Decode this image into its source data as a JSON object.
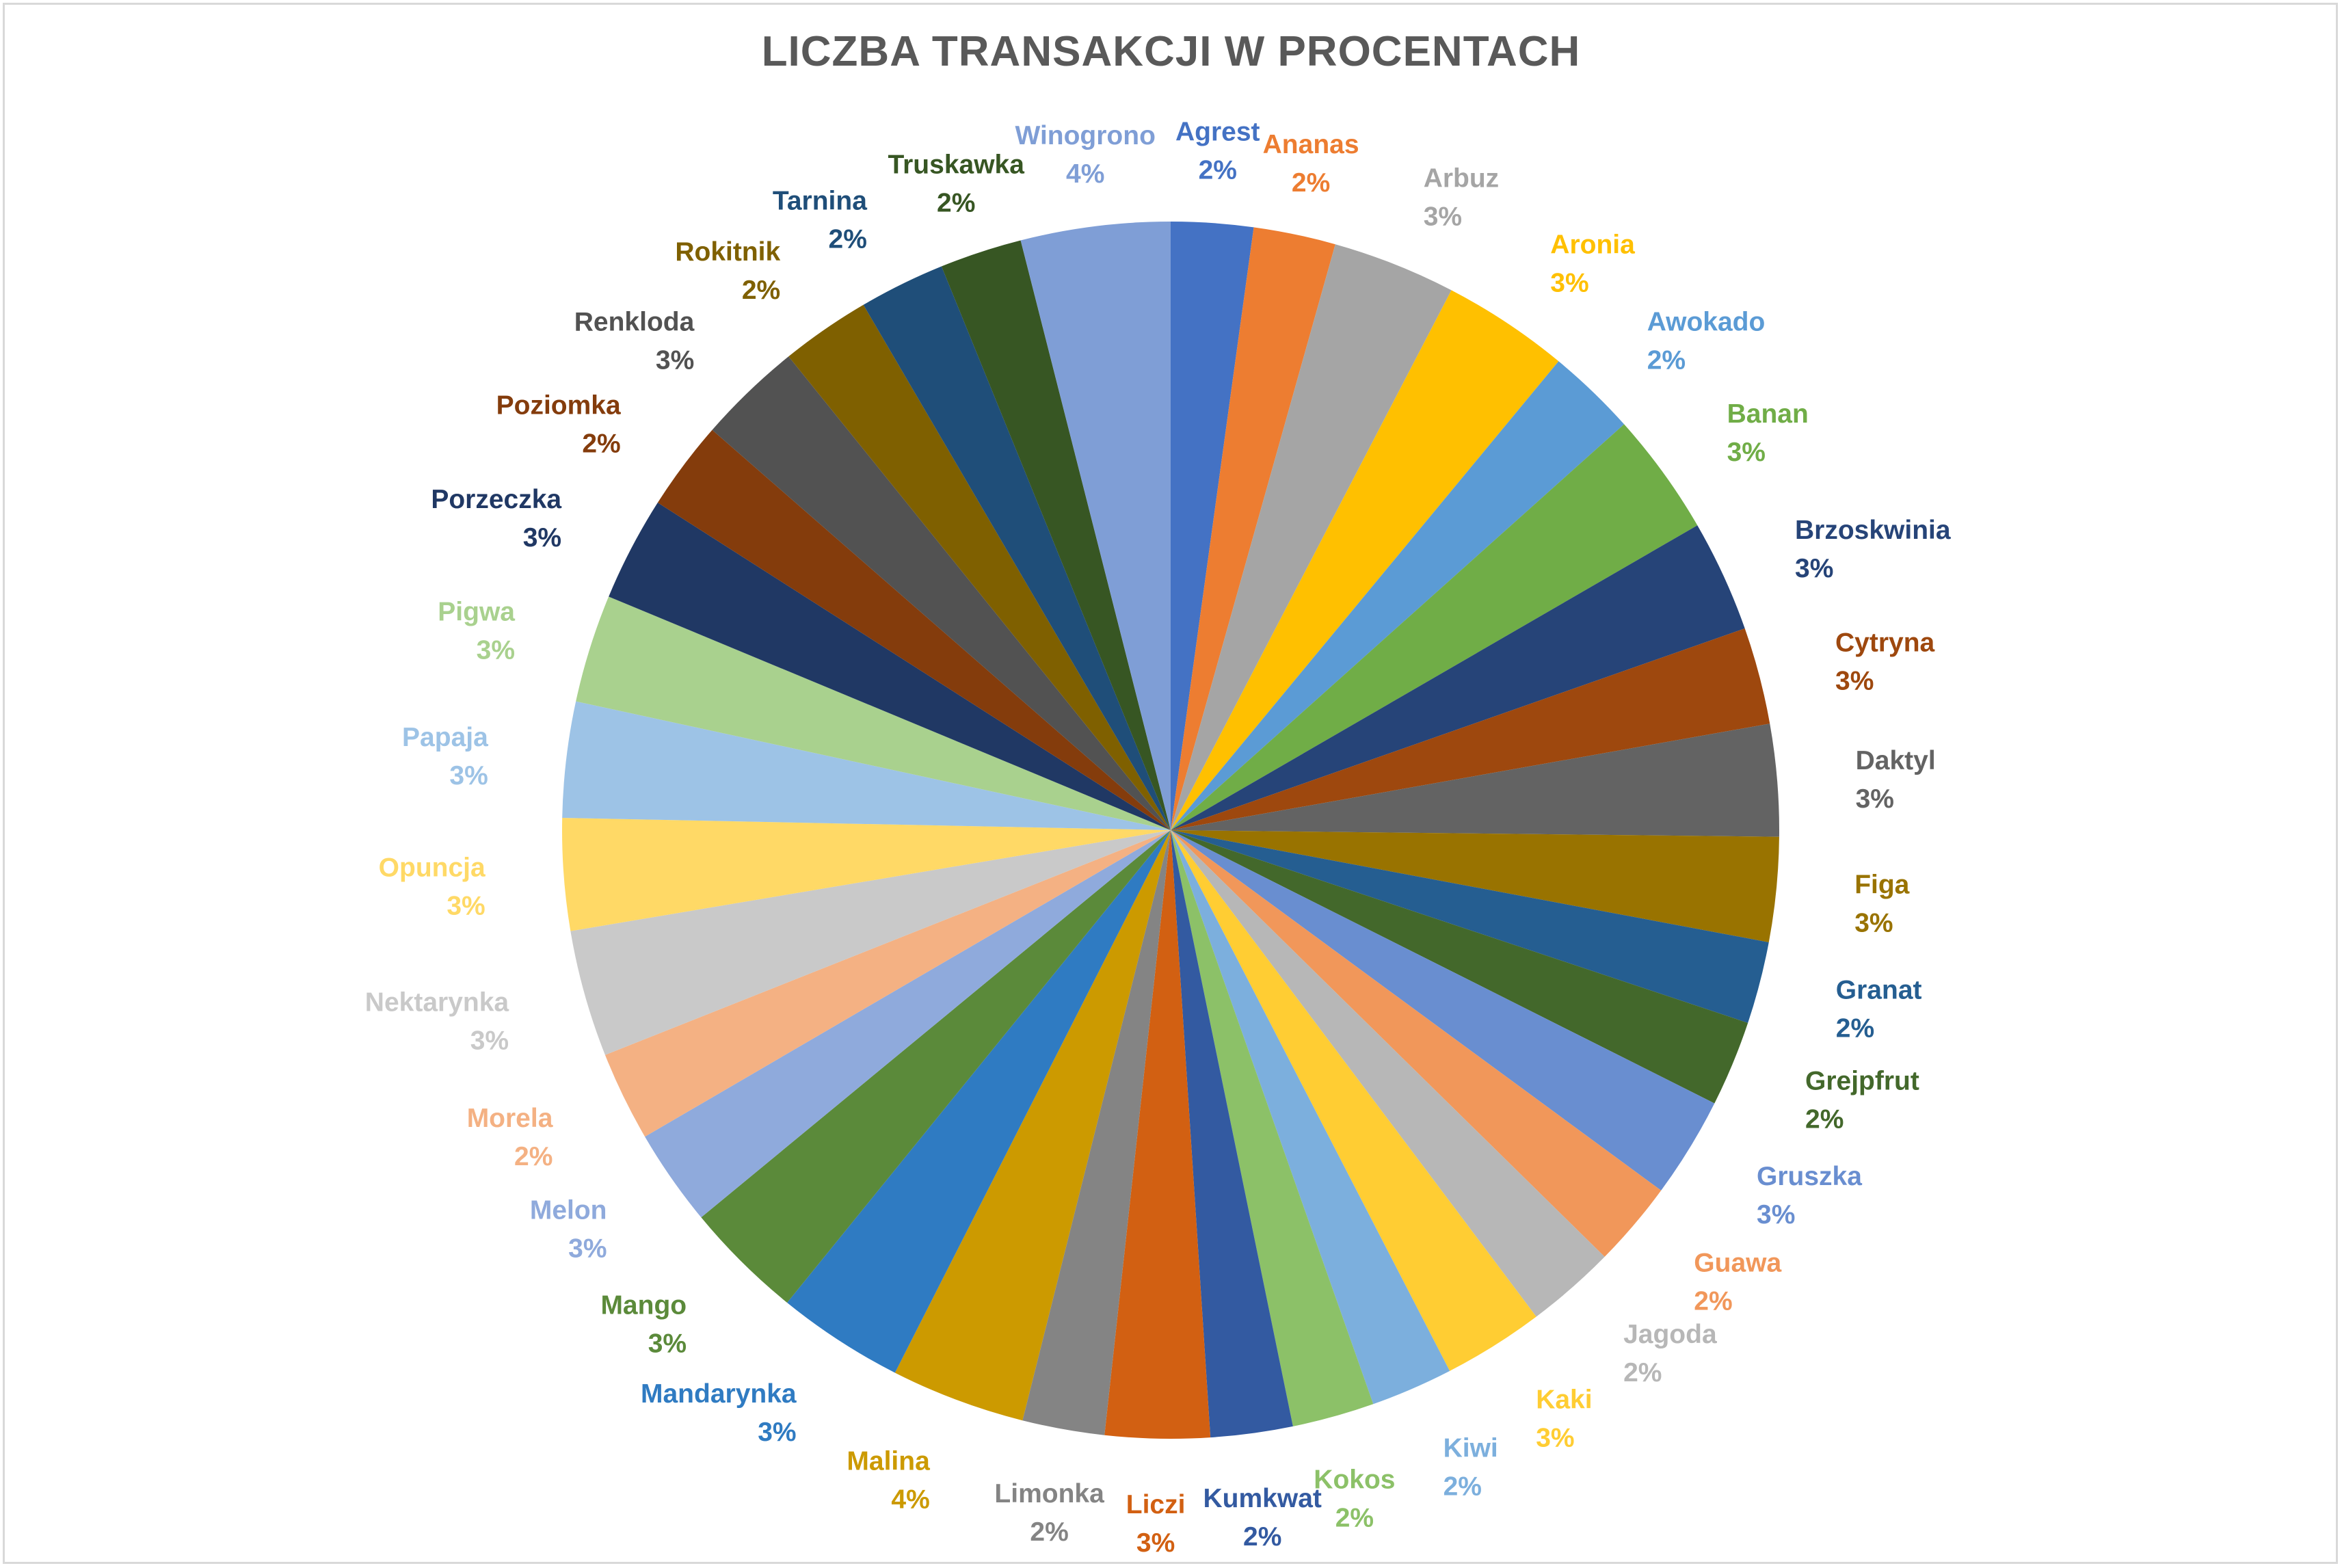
{
  "chart_data": {
    "type": "pie",
    "title": "LICZBA TRANSAKCJI W PROCENTACH",
    "slices": [
      {
        "name": "Agrest",
        "label": "2%",
        "value": 2.2,
        "color": "#4472C4"
      },
      {
        "name": "Ananas",
        "label": "2%",
        "value": 2.2,
        "color": "#ED7D31"
      },
      {
        "name": "Arbuz",
        "label": "3%",
        "value": 3.3,
        "color": "#A5A5A5"
      },
      {
        "name": "Aronia",
        "label": "3%",
        "value": 3.4,
        "color": "#FFC000"
      },
      {
        "name": "Awokado",
        "label": "2%",
        "value": 2.4,
        "color": "#5B9BD5"
      },
      {
        "name": "Banan",
        "label": "3%",
        "value": 3.3,
        "color": "#70AD47"
      },
      {
        "name": "Brzoskwinia",
        "label": "3%",
        "value": 3.0,
        "color": "#264478"
      },
      {
        "name": "Cytryna",
        "label": "3%",
        "value": 2.6,
        "color": "#9E480E"
      },
      {
        "name": "Daktyl",
        "label": "3%",
        "value": 3.0,
        "color": "#636363"
      },
      {
        "name": "Figa",
        "label": "3%",
        "value": 2.8,
        "color": "#997300"
      },
      {
        "name": "Granat",
        "label": "2%",
        "value": 2.2,
        "color": "#255E91"
      },
      {
        "name": "Grejpfrut",
        "label": "2%",
        "value": 2.3,
        "color": "#43682B"
      },
      {
        "name": "Gruszka",
        "label": "3%",
        "value": 2.7,
        "color": "#698ED0"
      },
      {
        "name": "Guawa",
        "label": "2%",
        "value": 2.3,
        "color": "#F1975A"
      },
      {
        "name": "Jagoda",
        "label": "2%",
        "value": 2.4,
        "color": "#B7B7B7"
      },
      {
        "name": "Kaki",
        "label": "3%",
        "value": 2.7,
        "color": "#FFCD33"
      },
      {
        "name": "Kiwi",
        "label": "2%",
        "value": 2.2,
        "color": "#7CAFDD"
      },
      {
        "name": "Kokos",
        "label": "2%",
        "value": 2.2,
        "color": "#8CC168"
      },
      {
        "name": "Kumkwat",
        "label": "2%",
        "value": 2.2,
        "color": "#335AA1"
      },
      {
        "name": "Liczi",
        "label": "3%",
        "value": 2.8,
        "color": "#D26012"
      },
      {
        "name": "Limonka",
        "label": "2%",
        "value": 2.2,
        "color": "#848484"
      },
      {
        "name": "Malina",
        "label": "4%",
        "value": 3.6,
        "color": "#CC9A00"
      },
      {
        "name": "Mandarynka",
        "label": "3%",
        "value": 3.4,
        "color": "#2F7BC2"
      },
      {
        "name": "Mango",
        "label": "3%",
        "value": 3.2,
        "color": "#5B8A3A"
      },
      {
        "name": "Melon",
        "label": "3%",
        "value": 2.6,
        "color": "#8FAADC"
      },
      {
        "name": "Morela",
        "label": "2%",
        "value": 2.4,
        "color": "#F4B183"
      },
      {
        "name": "Nektarynka",
        "label": "3%",
        "value": 3.4,
        "color": "#C9C9C9"
      },
      {
        "name": "Opuncja",
        "label": "3%",
        "value": 3.0,
        "color": "#FFD966"
      },
      {
        "name": "Papaja",
        "label": "3%",
        "value": 3.1,
        "color": "#9DC3E6"
      },
      {
        "name": "Pigwa",
        "label": "3%",
        "value": 2.9,
        "color": "#A9D18E"
      },
      {
        "name": "Porzeczka",
        "label": "3%",
        "value": 2.8,
        "color": "#203864"
      },
      {
        "name": "Poziomka",
        "label": "2%",
        "value": 2.4,
        "color": "#843C0C"
      },
      {
        "name": "Renkloda",
        "label": "3%",
        "value": 2.8,
        "color": "#525252"
      },
      {
        "name": "Rokitnik",
        "label": "2%",
        "value": 2.4,
        "color": "#7F6000"
      },
      {
        "name": "Tarnina",
        "label": "2%",
        "value": 2.3,
        "color": "#1F4E79"
      },
      {
        "name": "Truskawka",
        "label": "2%",
        "value": 2.2,
        "color": "#375623"
      },
      {
        "name": "Winogrono",
        "label": "4%",
        "value": 4.0,
        "color": "#7F9ED6"
      }
    ]
  }
}
